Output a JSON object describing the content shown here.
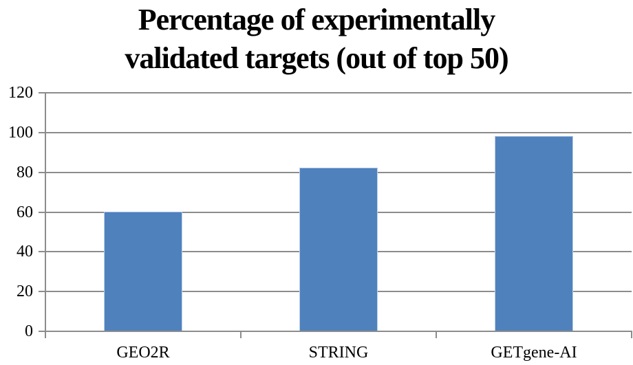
{
  "chart_data": {
    "type": "bar",
    "title": "Percentage of experimentally validated targets (out of top 50)",
    "title_lines": [
      "Percentage of experimentally",
      "validated targets (out of top 50)"
    ],
    "categories": [
      "GEO2R",
      "STRING",
      "GETgene-AI"
    ],
    "values": [
      60,
      82,
      98
    ],
    "xlabel": "",
    "ylabel": "",
    "ylim": [
      0,
      120
    ],
    "yticks": [
      0,
      20,
      40,
      60,
      80,
      100,
      120
    ],
    "grid": true,
    "legend": "none",
    "colors": {
      "bar_fill": "#4F81BD",
      "bar_edge": "#BDD0E7",
      "gridline": "#8C8C8C",
      "axis": "#8C8C8C",
      "text": "#000000",
      "background": "#FFFFFF"
    }
  }
}
